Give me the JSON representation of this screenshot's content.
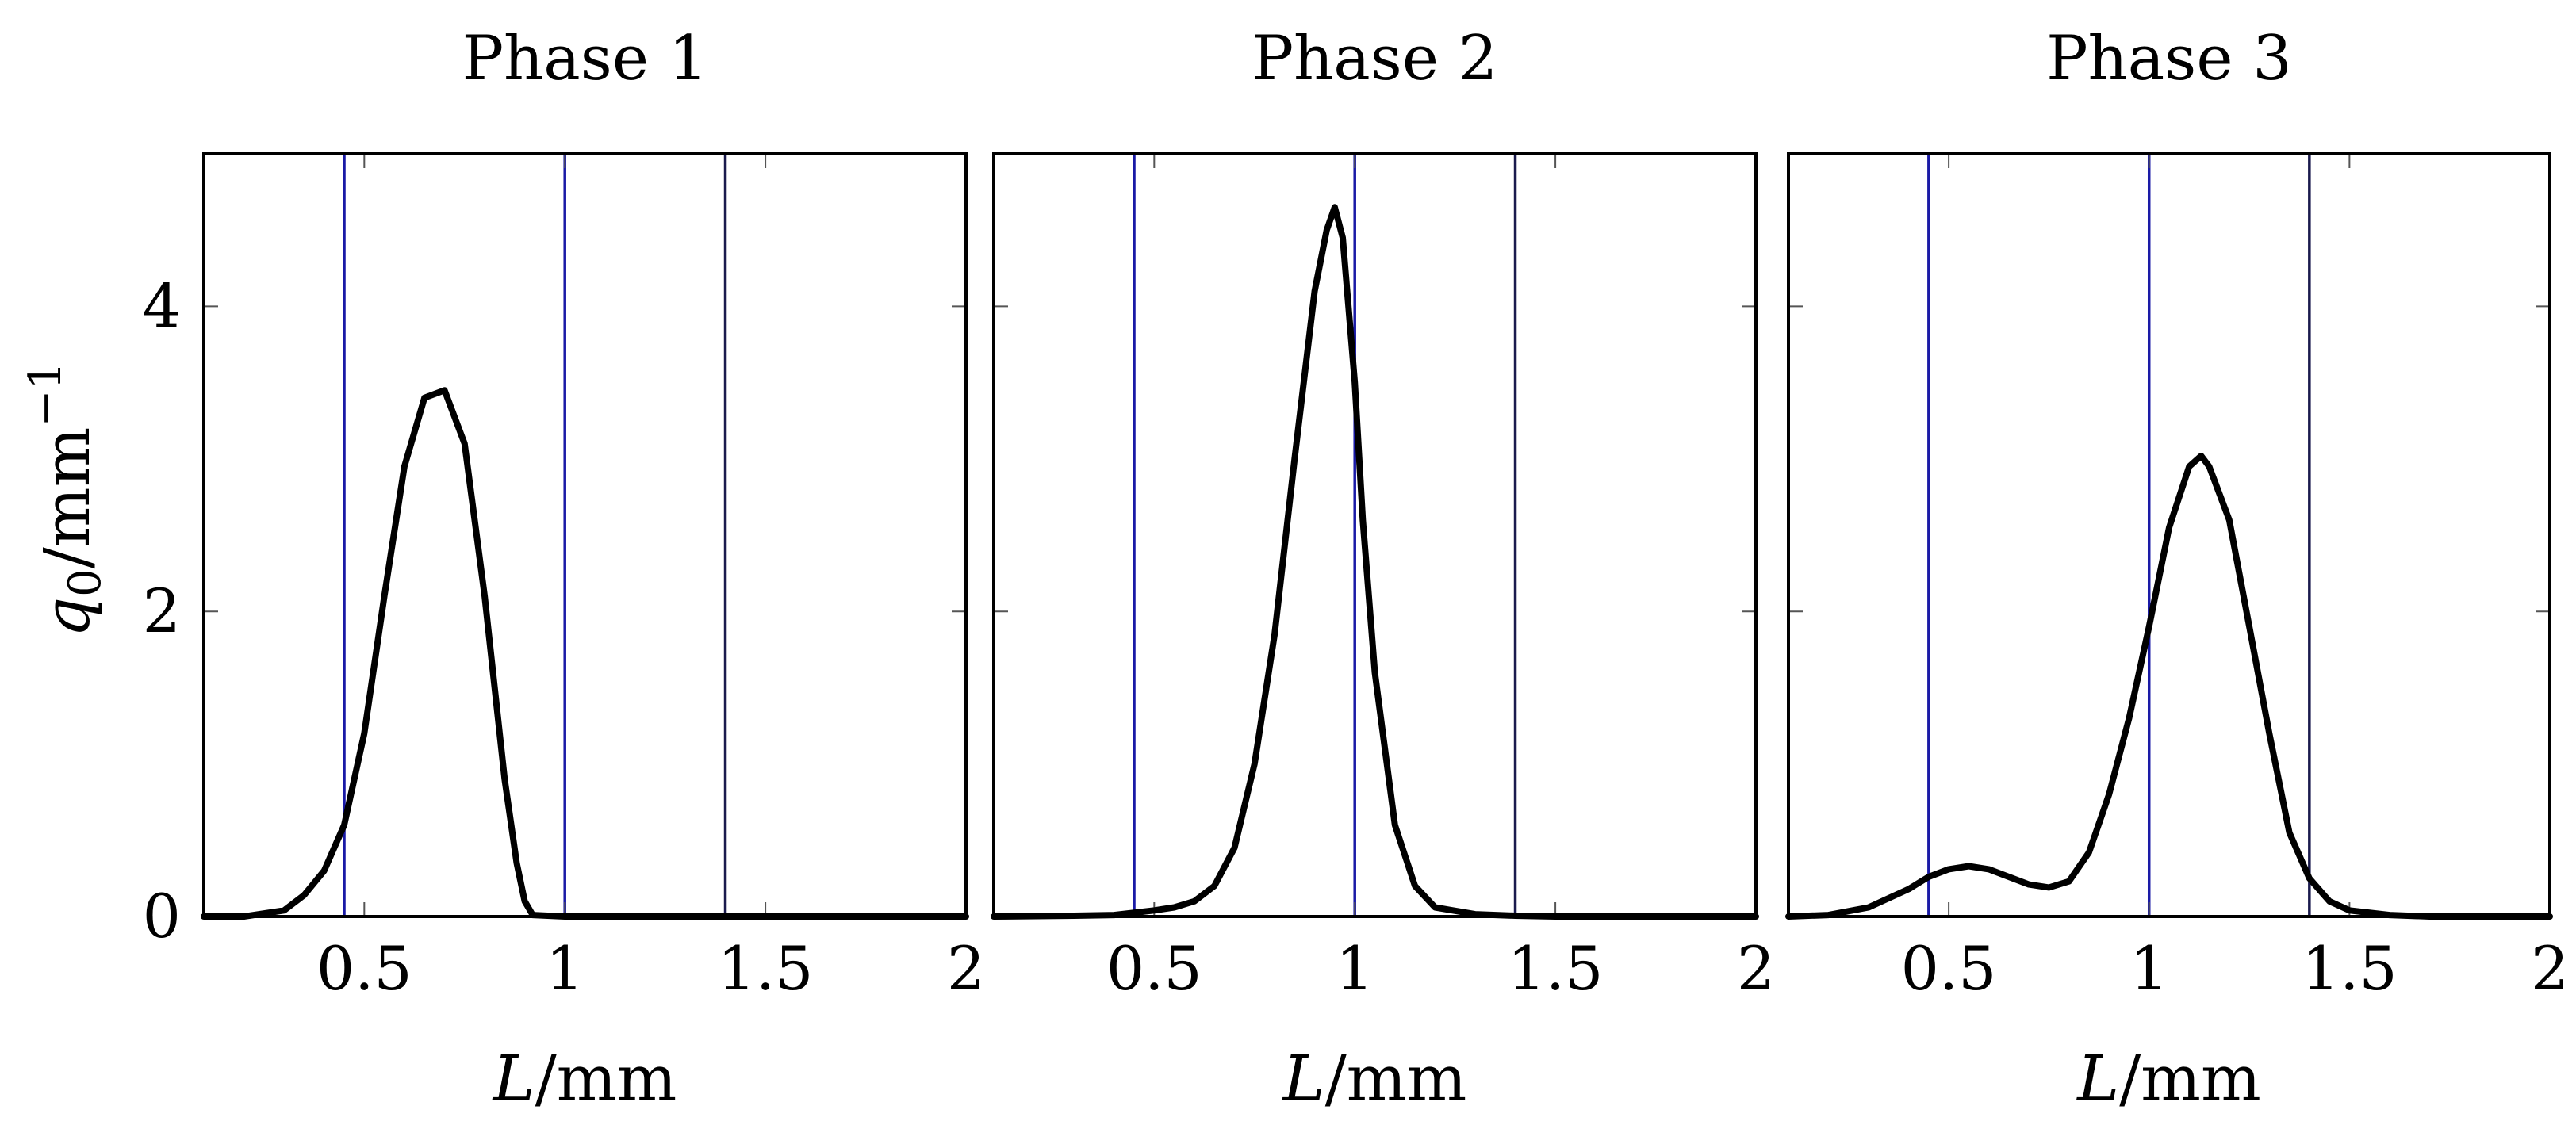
{
  "figure": {
    "ylabel_symbol": "q",
    "ylabel_subscript": "0",
    "ylabel_unit": "/mm",
    "ylabel_exponent": "−1",
    "xlabel_symbol": "L",
    "xlabel_unit": "/mm"
  },
  "colors": {
    "curve": "#000000",
    "ref_line_blue": "#1a1aa6",
    "ref_line_dark": "#1a1a4d",
    "axes": "#000000"
  },
  "chart_data": [
    {
      "type": "line",
      "title": "Phase 1",
      "xlabel": "L/mm",
      "ylabel": "q0/mm^-1",
      "xlim": [
        0.1,
        2.0
      ],
      "ylim": [
        0,
        5
      ],
      "xticks": [
        0.5,
        1,
        1.5,
        2
      ],
      "xtick_labels": [
        "0.5",
        "1",
        "1.5",
        "2"
      ],
      "yticks": [
        0,
        2,
        4
      ],
      "ytick_labels": [
        "0",
        "2",
        "4"
      ],
      "vlines": [
        0.45,
        1.0,
        1.4
      ],
      "series": [
        {
          "name": "q0",
          "x": [
            0.1,
            0.2,
            0.3,
            0.35,
            0.4,
            0.45,
            0.5,
            0.55,
            0.6,
            0.65,
            0.7,
            0.75,
            0.8,
            0.85,
            0.88,
            0.9,
            0.92,
            1.0,
            1.5,
            2.0
          ],
          "y": [
            0,
            0,
            0.04,
            0.14,
            0.3,
            0.6,
            1.2,
            2.1,
            2.95,
            3.4,
            3.45,
            3.1,
            2.1,
            0.9,
            0.35,
            0.1,
            0.01,
            0,
            0,
            0
          ]
        }
      ]
    },
    {
      "type": "line",
      "title": "Phase 2",
      "xlabel": "L/mm",
      "ylabel": "q0/mm^-1",
      "xlim": [
        0.1,
        2.0
      ],
      "ylim": [
        0,
        5
      ],
      "xticks": [
        0.5,
        1,
        1.5,
        2
      ],
      "xtick_labels": [
        "0.5",
        "1",
        "1.5",
        "2"
      ],
      "yticks": [
        0,
        2,
        4
      ],
      "ytick_labels": [
        "0",
        "2",
        "4"
      ],
      "vlines": [
        0.45,
        1.0,
        1.4
      ],
      "series": [
        {
          "name": "q0",
          "x": [
            0.1,
            0.3,
            0.4,
            0.5,
            0.55,
            0.6,
            0.65,
            0.7,
            0.75,
            0.8,
            0.85,
            0.9,
            0.93,
            0.95,
            0.97,
            1.0,
            1.02,
            1.05,
            1.1,
            1.15,
            1.2,
            1.3,
            1.4,
            1.5,
            2.0
          ],
          "y": [
            0,
            0.005,
            0.01,
            0.04,
            0.06,
            0.1,
            0.2,
            0.45,
            1.0,
            1.85,
            3.0,
            4.1,
            4.5,
            4.65,
            4.45,
            3.5,
            2.6,
            1.6,
            0.6,
            0.2,
            0.06,
            0.015,
            0.005,
            0,
            0
          ]
        }
      ]
    },
    {
      "type": "line",
      "title": "Phase 3",
      "xlabel": "L/mm",
      "ylabel": "q0/mm^-1",
      "xlim": [
        0.1,
        2.0
      ],
      "ylim": [
        0,
        5
      ],
      "xticks": [
        0.5,
        1,
        1.5,
        2
      ],
      "xtick_labels": [
        "0.5",
        "1",
        "1.5",
        "2"
      ],
      "yticks": [
        0,
        2,
        4
      ],
      "ytick_labels": [
        "0",
        "2",
        "4"
      ],
      "vlines": [
        0.45,
        1.0,
        1.4
      ],
      "series": [
        {
          "name": "q0",
          "x": [
            0.1,
            0.2,
            0.3,
            0.4,
            0.45,
            0.5,
            0.55,
            0.6,
            0.65,
            0.7,
            0.75,
            0.8,
            0.85,
            0.9,
            0.95,
            1.0,
            1.05,
            1.1,
            1.13,
            1.15,
            1.2,
            1.25,
            1.3,
            1.35,
            1.4,
            1.45,
            1.5,
            1.6,
            1.7,
            2.0
          ],
          "y": [
            0,
            0.01,
            0.06,
            0.18,
            0.26,
            0.31,
            0.33,
            0.31,
            0.26,
            0.21,
            0.19,
            0.23,
            0.42,
            0.8,
            1.3,
            1.9,
            2.55,
            2.95,
            3.02,
            2.95,
            2.6,
            1.9,
            1.2,
            0.55,
            0.25,
            0.1,
            0.04,
            0.01,
            0,
            0
          ]
        }
      ]
    }
  ]
}
